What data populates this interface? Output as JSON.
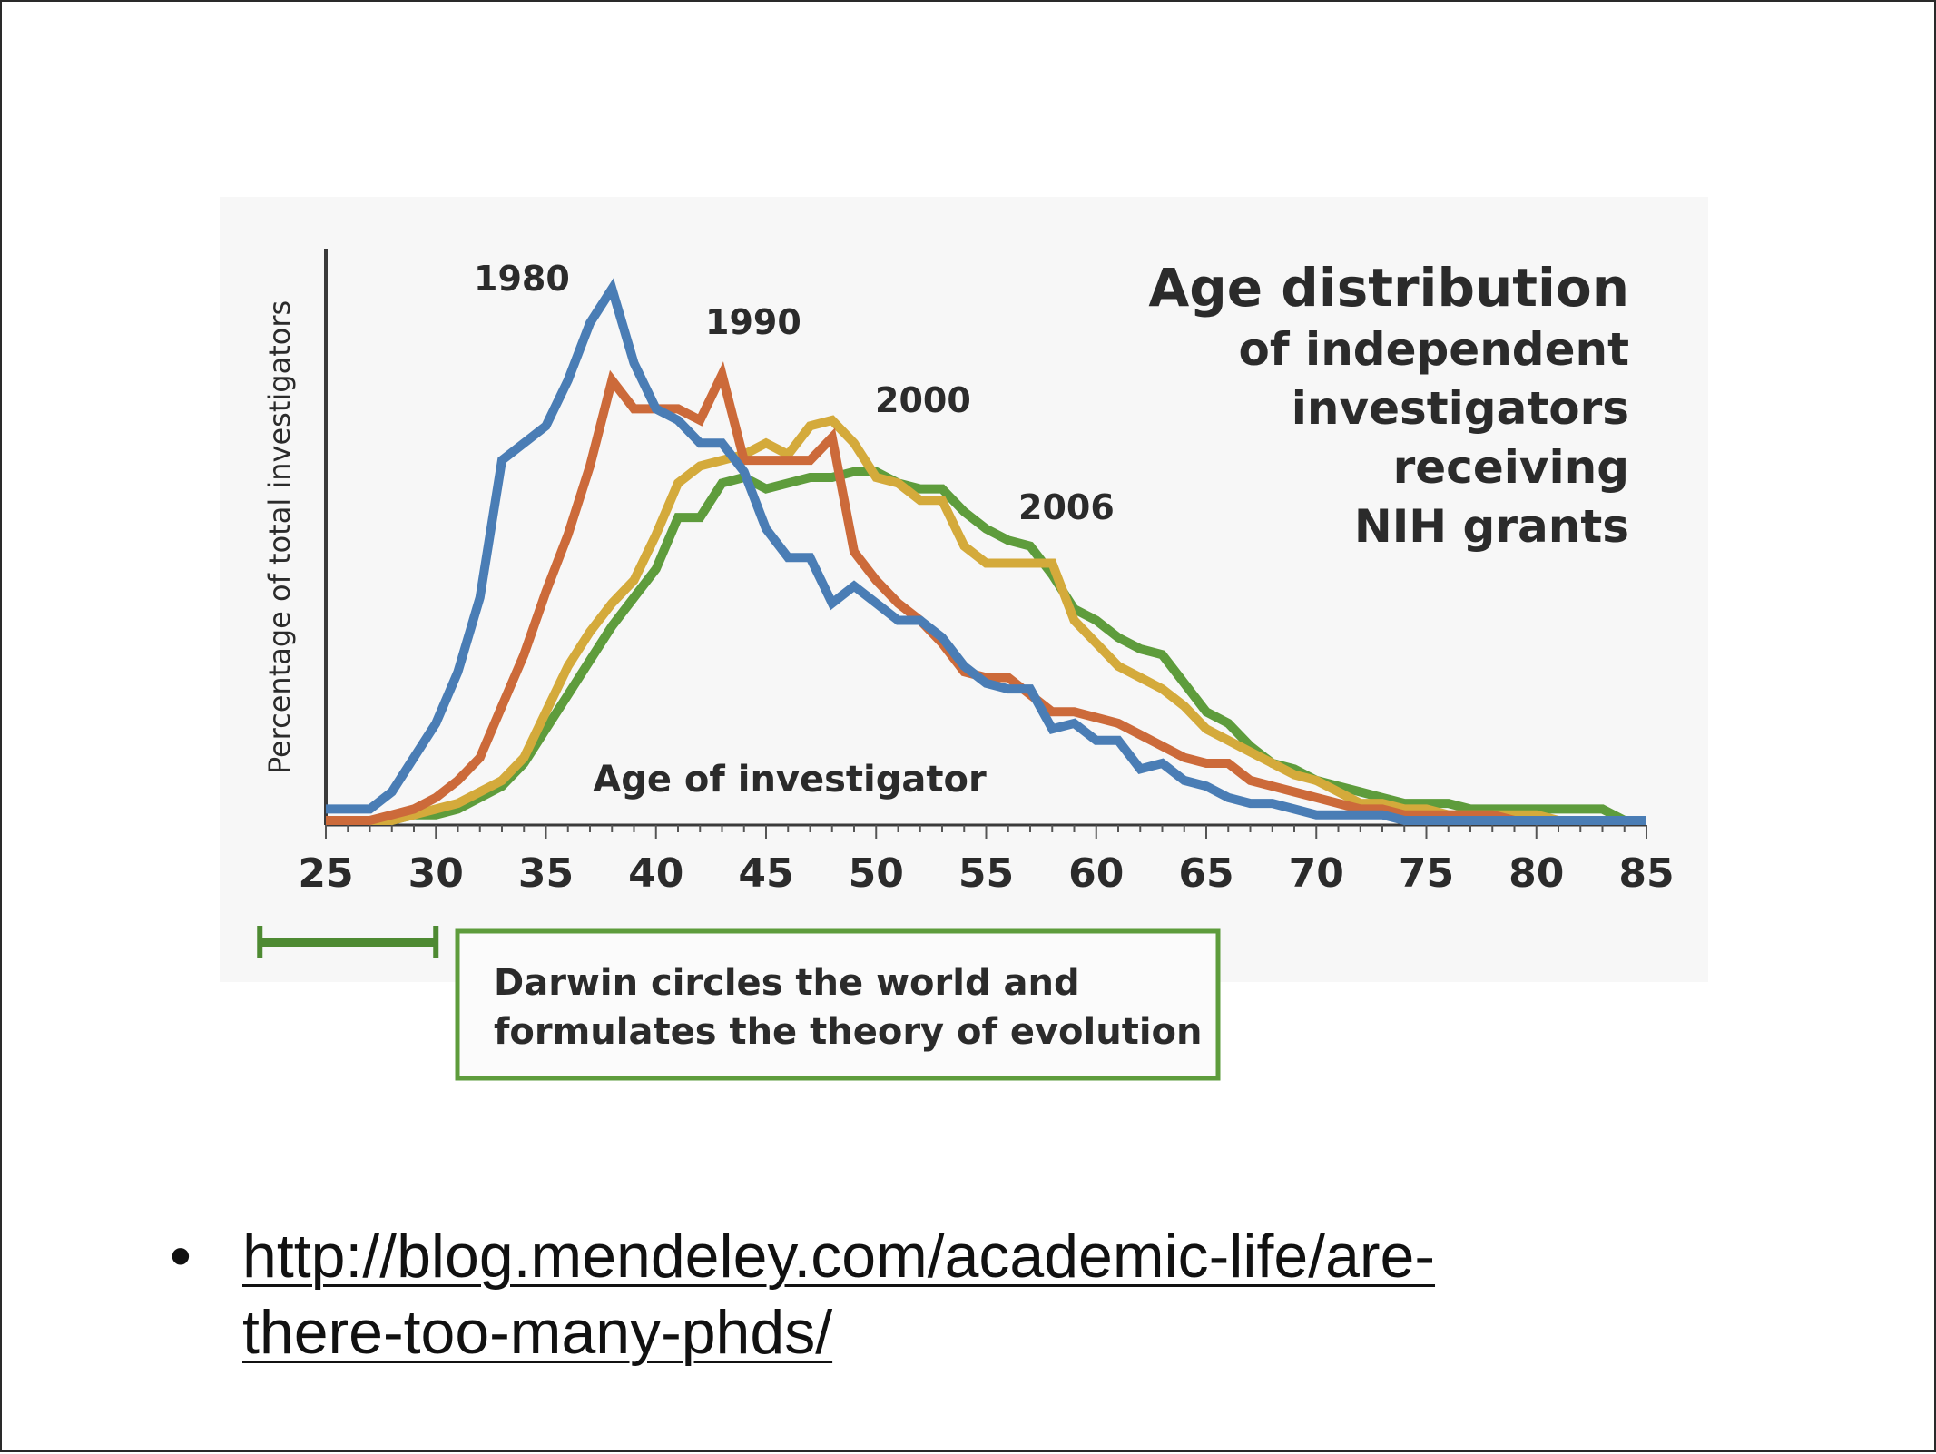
{
  "chart_data": {
    "type": "line",
    "title_lines": [
      "Age distribution",
      "of independent",
      "investigators",
      "receiving",
      "NIH grants"
    ],
    "xlabel": "Age of investigator",
    "ylabel": "Percentage of total investigators",
    "xlim": [
      25,
      85
    ],
    "ylim": [
      0,
      100
    ],
    "x_ticks": [
      "25",
      "30",
      "35",
      "40",
      "45",
      "50",
      "55",
      "60",
      "65",
      "70",
      "75",
      "80",
      "85"
    ],
    "grid": false,
    "legend": "labels near peaks",
    "series": [
      {
        "name": "1980",
        "color": "#4a7db5",
        "x": [
          25,
          26,
          27,
          28,
          29,
          30,
          31,
          32,
          33,
          34,
          35,
          36,
          37,
          38,
          39,
          40,
          41,
          42,
          43,
          44,
          45,
          46,
          47,
          48,
          49,
          50,
          51,
          52,
          53,
          54,
          55,
          56,
          57,
          58,
          59,
          60,
          61,
          62,
          63,
          64,
          65,
          66,
          67,
          68,
          69,
          70,
          71,
          72,
          73,
          74,
          75,
          76,
          77,
          78,
          79,
          80,
          81,
          82,
          83,
          84,
          85
        ],
        "values": [
          2,
          2,
          2,
          5,
          11,
          17,
          26,
          39,
          63,
          66,
          69,
          77,
          87,
          93,
          80,
          72,
          70,
          66,
          66,
          61,
          51,
          46,
          46,
          38,
          41,
          38,
          35,
          35,
          32,
          27,
          24,
          23,
          23,
          16,
          17,
          14,
          14,
          9,
          10,
          7,
          6,
          4,
          3,
          3,
          2,
          1,
          1,
          1,
          1,
          0,
          0,
          0,
          0,
          0,
          0,
          0,
          0,
          0,
          0,
          0,
          0
        ]
      },
      {
        "name": "1990",
        "color": "#cc6a3a",
        "x": [
          25,
          26,
          27,
          28,
          29,
          30,
          31,
          32,
          33,
          34,
          35,
          36,
          37,
          38,
          39,
          40,
          41,
          42,
          43,
          44,
          45,
          46,
          47,
          48,
          49,
          50,
          51,
          52,
          53,
          54,
          55,
          56,
          57,
          58,
          59,
          60,
          61,
          62,
          63,
          64,
          65,
          66,
          67,
          68,
          69,
          70,
          71,
          72,
          73,
          74,
          75,
          76,
          77,
          78,
          79,
          80,
          81,
          82,
          83,
          84,
          85
        ],
        "values": [
          0,
          0,
          0,
          1,
          2,
          4,
          7,
          11,
          20,
          29,
          40,
          50,
          62,
          77,
          72,
          72,
          72,
          70,
          78,
          63,
          63,
          63,
          63,
          67,
          47,
          42,
          38,
          35,
          31,
          26,
          25,
          25,
          22,
          19,
          19,
          18,
          17,
          15,
          13,
          11,
          10,
          10,
          7,
          6,
          5,
          4,
          3,
          2,
          2,
          1,
          1,
          1,
          1,
          1,
          0,
          0,
          0,
          0,
          0,
          0,
          0
        ]
      },
      {
        "name": "2000",
        "color": "#d4aa3b",
        "x": [
          25,
          26,
          27,
          28,
          29,
          30,
          31,
          32,
          33,
          34,
          35,
          36,
          37,
          38,
          39,
          40,
          41,
          42,
          43,
          44,
          45,
          46,
          47,
          48,
          49,
          50,
          51,
          52,
          53,
          54,
          55,
          56,
          57,
          58,
          59,
          60,
          61,
          62,
          63,
          64,
          65,
          66,
          67,
          68,
          69,
          70,
          71,
          72,
          73,
          74,
          75,
          76,
          77,
          78,
          79,
          80,
          81,
          82,
          83,
          84,
          85
        ],
        "values": [
          0,
          0,
          0,
          0,
          1,
          2,
          3,
          5,
          7,
          11,
          19,
          27,
          33,
          38,
          42,
          50,
          59,
          62,
          63,
          64,
          66,
          64,
          69,
          70,
          66,
          60,
          59,
          56,
          56,
          48,
          45,
          45,
          45,
          45,
          35,
          31,
          27,
          25,
          23,
          20,
          16,
          14,
          12,
          10,
          8,
          7,
          5,
          3,
          3,
          2,
          2,
          1,
          1,
          1,
          1,
          1,
          0,
          0,
          0,
          0,
          0
        ]
      },
      {
        "name": "2006",
        "color": "#5e9c3c",
        "x": [
          25,
          26,
          27,
          28,
          29,
          30,
          31,
          32,
          33,
          34,
          35,
          36,
          37,
          38,
          39,
          40,
          41,
          42,
          43,
          44,
          45,
          46,
          47,
          48,
          49,
          50,
          51,
          52,
          53,
          54,
          55,
          56,
          57,
          58,
          59,
          60,
          61,
          62,
          63,
          64,
          65,
          66,
          67,
          68,
          69,
          70,
          71,
          72,
          73,
          74,
          75,
          76,
          77,
          78,
          79,
          80,
          81,
          82,
          83,
          84,
          85
        ],
        "values": [
          0,
          0,
          0,
          0,
          1,
          1,
          2,
          4,
          6,
          10,
          16,
          22,
          28,
          34,
          39,
          44,
          53,
          53,
          59,
          60,
          58,
          59,
          60,
          60,
          61,
          61,
          59,
          58,
          58,
          54,
          51,
          49,
          48,
          43,
          37,
          35,
          32,
          30,
          29,
          24,
          19,
          17,
          13,
          10,
          9,
          7,
          6,
          5,
          4,
          3,
          3,
          3,
          2,
          2,
          2,
          2,
          2,
          2,
          2,
          0,
          0
        ]
      }
    ],
    "note": {
      "line1": "Darwin circles the world and",
      "line2": "formulates the theory of evolution",
      "range": [
        22,
        30
      ]
    }
  },
  "bullet": {
    "link_line1": "http://blog.mendeley.com/academic-life/are-",
    "link_line2": "there-too-many-phds/"
  }
}
